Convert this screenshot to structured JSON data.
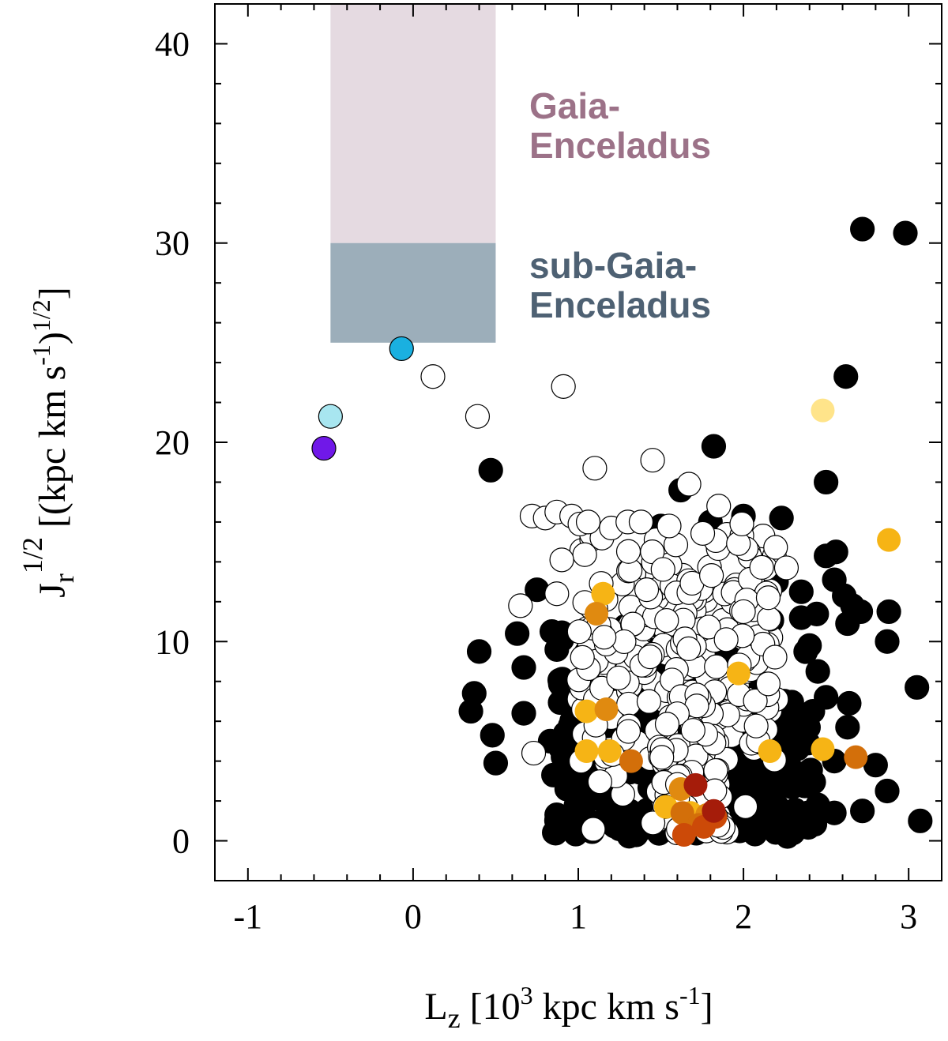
{
  "chart_data": {
    "type": "scatter",
    "xlabel": {
      "base": "L",
      "sub": "z",
      "unit_pre": " [10",
      "unit_sup": "3",
      "unit_mid": " kpc km s",
      "unit_sup2": "-1",
      "unit_post": "]"
    },
    "ylabel": {
      "base": "J",
      "sub": "r",
      "sup": "1/2",
      "unit_pre": " [(kpc km s",
      "unit_sup": "-1",
      "unit_mid": ")",
      "unit_sup2": "1/2",
      "unit_post": "]"
    },
    "xlim": [
      -1.2,
      3.2
    ],
    "ylim": [
      -2,
      42
    ],
    "xticks": [
      -1,
      0,
      1,
      2,
      3
    ],
    "xtick_labels": [
      "-1",
      "0",
      "1",
      "2",
      "3"
    ],
    "yticks": [
      0,
      10,
      20,
      30,
      40
    ],
    "ytick_labels": [
      "0",
      "10",
      "20",
      "30",
      "40"
    ],
    "colors": {
      "gaia_region": "#e5dae1",
      "sub_gaia_region": "#9caeba",
      "gaia_text": "#9c7288",
      "sub_gaia_text": "#4e6173",
      "black_points": "#000000",
      "white_points": "#ffffff"
    },
    "regions": [
      {
        "name": "Gaia-Enceladus",
        "x": [
          -0.5,
          0.5
        ],
        "y": [
          30,
          42
        ],
        "label_lines": [
          "Gaia-",
          "Enceladus"
        ],
        "color": "#e5dae1",
        "text_color": "#9c7288"
      },
      {
        "name": "sub-Gaia-Enceladus",
        "x": [
          -0.5,
          0.5
        ],
        "y": [
          25,
          30
        ],
        "label_lines": [
          "sub-Gaia-",
          "Enceladus"
        ],
        "color": "#9caeba",
        "text_color": "#4e6173"
      }
    ],
    "series": [
      {
        "name": "black",
        "color": "#000000",
        "points": [
          [
            2.72,
            30.7
          ],
          [
            2.98,
            30.5
          ],
          [
            2.62,
            23.3
          ],
          [
            1.82,
            19.8
          ],
          [
            0.47,
            18.6
          ],
          [
            2.5,
            18.0
          ],
          [
            2.23,
            16.2
          ],
          [
            2.5,
            14.3
          ],
          [
            2.56,
            14.5
          ],
          [
            2.55,
            13.1
          ],
          [
            2.61,
            12.3
          ],
          [
            2.66,
            11.8
          ],
          [
            2.71,
            11.5
          ],
          [
            2.88,
            11.5
          ],
          [
            2.63,
            10.9
          ],
          [
            2.87,
            10.0
          ],
          [
            3.05,
            7.7
          ],
          [
            2.64,
            6.9
          ],
          [
            2.63,
            5.7
          ],
          [
            2.55,
            4.0
          ],
          [
            2.8,
            3.8
          ],
          [
            2.87,
            2.5
          ],
          [
            2.72,
            1.5
          ],
          [
            3.07,
            1.0
          ],
          [
            0.4,
            9.5
          ],
          [
            0.37,
            7.4
          ],
          [
            0.35,
            6.5
          ],
          [
            0.48,
            5.3
          ],
          [
            0.5,
            3.9
          ],
          [
            0.63,
            10.4
          ],
          [
            0.67,
            8.7
          ],
          [
            0.67,
            6.4
          ],
          [
            0.75,
            12.6
          ],
          [
            0.84,
            10.5
          ],
          [
            0.87,
            9.6
          ],
          [
            0.83,
            5.0
          ],
          [
            0.85,
            3.3
          ],
          [
            0.93,
            2.6
          ],
          [
            1.0,
            2.5
          ],
          [
            1.1,
            2.2
          ],
          [
            1.15,
            1.0
          ],
          [
            1.25,
            0.6
          ],
          [
            1.35,
            0.3
          ],
          [
            1.49,
            0.5
          ],
          [
            2.05,
            1.0
          ],
          [
            2.15,
            0.8
          ],
          [
            2.3,
            0.4
          ],
          [
            2.45,
            1.8
          ],
          [
            2.55,
            1.4
          ],
          [
            2.1,
            13.8
          ],
          [
            2.2,
            13.0
          ],
          [
            2.35,
            12.5
          ],
          [
            1.1,
            15.3
          ],
          [
            1.8,
            16.0
          ],
          [
            2.0,
            16.3
          ],
          [
            1.62,
            17.6
          ],
          [
            1.5,
            15.8
          ],
          [
            2.35,
            11.2
          ],
          [
            2.4,
            9.8
          ],
          [
            2.45,
            8.5
          ],
          [
            2.5,
            7.2
          ],
          [
            2.42,
            6.5
          ]
        ]
      },
      {
        "name": "white",
        "color": "#ffffff",
        "points": [
          [
            0.12,
            23.3
          ],
          [
            0.91,
            22.8
          ],
          [
            0.39,
            21.3
          ],
          [
            1.1,
            18.7
          ],
          [
            1.45,
            19.1
          ],
          [
            1.67,
            17.9
          ],
          [
            0.65,
            11.8
          ],
          [
            0.73,
            4.4
          ],
          [
            0.72,
            16.3
          ],
          [
            0.8,
            16.2
          ],
          [
            0.87,
            16.5
          ],
          [
            0.96,
            16.3
          ],
          [
            1.01,
            15.9
          ],
          [
            1.06,
            16.0
          ],
          [
            1.2,
            15.7
          ],
          [
            1.3,
            16.0
          ],
          [
            1.38,
            16.0
          ],
          [
            1.55,
            15.8
          ],
          [
            1.85,
            16.8
          ],
          [
            1.99,
            15.9
          ],
          [
            2.26,
            13.7
          ],
          [
            2.15,
            12.2
          ],
          [
            2.0,
            11.5
          ],
          [
            0.9,
            14.1
          ],
          [
            0.87,
            12.4
          ]
        ]
      },
      {
        "name": "cyan",
        "color": "#1ab0e0",
        "points": [
          [
            -0.07,
            24.7
          ]
        ]
      },
      {
        "name": "light-cyan",
        "color": "#a8e6f0",
        "points": [
          [
            -0.5,
            21.3
          ]
        ]
      },
      {
        "name": "violet",
        "color": "#7018e8",
        "points": [
          [
            -0.54,
            19.7
          ]
        ]
      },
      {
        "name": "pale-yellow",
        "color": "#ffe48a",
        "points": [
          [
            2.48,
            21.6
          ]
        ]
      },
      {
        "name": "gold",
        "color": "#f6b415",
        "points": [
          [
            2.88,
            15.1
          ],
          [
            1.15,
            12.4
          ],
          [
            1.97,
            8.4
          ],
          [
            1.05,
            6.5
          ],
          [
            1.05,
            4.5
          ],
          [
            1.19,
            4.5
          ],
          [
            2.16,
            4.5
          ],
          [
            2.48,
            4.6
          ],
          [
            1.53,
            1.7
          ],
          [
            1.68,
            1.4
          ]
        ]
      },
      {
        "name": "orange",
        "color": "#e08a10",
        "points": [
          [
            1.11,
            11.4
          ],
          [
            1.17,
            6.6
          ],
          [
            1.62,
            2.6
          ],
          [
            1.78,
            1.3
          ]
        ]
      },
      {
        "name": "dark-orange",
        "color": "#d36f0a",
        "points": [
          [
            1.32,
            4.0
          ],
          [
            2.68,
            4.2
          ],
          [
            1.63,
            1.4
          ],
          [
            1.73,
            0.8
          ]
        ]
      },
      {
        "name": "red-orange",
        "color": "#cc4a08",
        "points": [
          [
            1.64,
            0.3
          ],
          [
            1.83,
            1.2
          ],
          [
            1.76,
            0.7
          ]
        ]
      },
      {
        "name": "dark-red",
        "color": "#a51c0a",
        "points": [
          [
            1.71,
            2.8
          ],
          [
            1.82,
            1.5
          ]
        ]
      }
    ],
    "clusters": [
      {
        "name": "black-dense",
        "color": "#000000",
        "x_range": [
          0.85,
          2.45
        ],
        "y_center": 4.2,
        "y_spread": 3.2,
        "count": 300
      },
      {
        "name": "white-dense",
        "color": "#ffffff",
        "x_range": [
          1.0,
          2.2
        ],
        "y_center": 9.0,
        "y_spread": 3.6,
        "count": 260
      },
      {
        "name": "white-core",
        "color": "#ffffff",
        "x_range": [
          1.45,
          1.9
        ],
        "y_center": 3.0,
        "y_spread": 2.0,
        "count": 70
      }
    ]
  }
}
